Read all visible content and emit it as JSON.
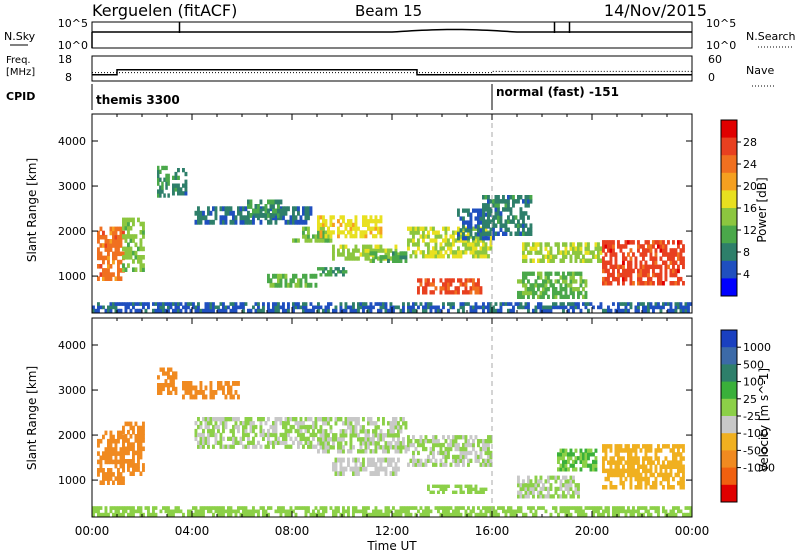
{
  "header": {
    "station": "Kerguelen (fitACF)",
    "beam": "Beam 15",
    "date": "14/Nov/2015"
  },
  "top_panels": {
    "nsky": {
      "label": "N.Sky",
      "left_ticks": [
        "10^5",
        "10^0"
      ],
      "right_ticks": [
        "10^5",
        "10^0"
      ],
      "right_label": "N.Search",
      "spike_times": [
        3.5,
        18.5,
        19.1
      ]
    },
    "freq": {
      "label_line1": "Freq.",
      "label_line2": "[MHz]",
      "left_ticks": [
        "18",
        "8"
      ],
      "right_ticks": [
        "60",
        "0"
      ],
      "right_label": "Nave",
      "freq_steps": [
        {
          "t0": 0.0,
          "t1": 1.0,
          "mhz": 10.5
        },
        {
          "t0": 1.0,
          "t1": 13.0,
          "mhz": 12.5
        },
        {
          "t0": 13.0,
          "t1": 24.0,
          "mhz": 10.5
        }
      ],
      "nave_steps": [
        {
          "t0": 0.0,
          "t1": 16.0,
          "nave": 20
        },
        {
          "t0": 16.0,
          "t1": 24.0,
          "nave": 23
        }
      ]
    },
    "cpid": {
      "label": "CPID",
      "entries": [
        {
          "t": 0.0,
          "text": "themis 3300"
        },
        {
          "t": 16.0,
          "text": "normal (fast) -151"
        }
      ]
    }
  },
  "chart_data": [
    {
      "type": "heatmap",
      "title": "",
      "quantity": "Power",
      "xlabel": "Time UT",
      "ylabel": "Slant Range [km]",
      "x_ticks": [
        "00:00",
        "04:00",
        "08:00",
        "12:00",
        "16:00",
        "20:00",
        "00:00"
      ],
      "xlim": [
        0,
        24
      ],
      "y_ticks": [
        1000,
        2000,
        3000,
        4000
      ],
      "ylim": [
        180,
        4600
      ],
      "colorbar": {
        "label": "Power [dB]",
        "ticks": [
          4,
          8,
          12,
          16,
          20,
          24,
          28
        ],
        "colors": [
          "#0000ff",
          "#1f4fbf",
          "#2e7f6a",
          "#4aa84a",
          "#8cc63f",
          "#e8e020",
          "#f5a020",
          "#f07020",
          "#e84020",
          "#e00000"
        ],
        "range": [
          0,
          32
        ]
      },
      "regions": [
        {
          "t0": 0.2,
          "t1": 1.3,
          "r0": 900,
          "r1": 2100,
          "v": 24
        },
        {
          "t0": 1.2,
          "t1": 2.1,
          "r0": 1100,
          "r1": 2300,
          "v": 14
        },
        {
          "t0": 2.6,
          "t1": 3.1,
          "r0": 2750,
          "r1": 3450,
          "v": 10
        },
        {
          "t0": 3.2,
          "t1": 3.8,
          "r0": 2800,
          "r1": 3400,
          "v": 8
        },
        {
          "t0": 4.1,
          "t1": 8.8,
          "r0": 2150,
          "r1": 2550,
          "v": 7
        },
        {
          "t0": 6.2,
          "t1": 7.6,
          "r0": 2300,
          "r1": 2700,
          "v": 9
        },
        {
          "t0": 8.0,
          "t1": 9.6,
          "r0": 1750,
          "r1": 2100,
          "v": 13
        },
        {
          "t0": 9.0,
          "t1": 11.6,
          "r0": 1850,
          "r1": 2350,
          "v": 18
        },
        {
          "t0": 9.6,
          "t1": 12.3,
          "r0": 1350,
          "r1": 1700,
          "v": 15
        },
        {
          "t0": 7.0,
          "t1": 9.0,
          "r0": 750,
          "r1": 1050,
          "v": 12
        },
        {
          "t0": 9.0,
          "t1": 10.2,
          "r0": 1000,
          "r1": 1200,
          "v": 10
        },
        {
          "t0": 11.1,
          "t1": 12.6,
          "r0": 1300,
          "r1": 1550,
          "v": 11
        },
        {
          "t0": 12.6,
          "t1": 16.0,
          "r0": 1400,
          "r1": 2100,
          "v": 16
        },
        {
          "t0": 13.0,
          "t1": 15.6,
          "r0": 600,
          "r1": 950,
          "v": 26
        },
        {
          "t0": 14.6,
          "t1": 16.1,
          "r0": 1800,
          "r1": 2500,
          "v": 6
        },
        {
          "t0": 15.6,
          "t1": 17.6,
          "r0": 1900,
          "r1": 2800,
          "v": 8
        },
        {
          "t0": 17.0,
          "t1": 19.8,
          "r0": 500,
          "r1": 1100,
          "v": 12
        },
        {
          "t0": 17.2,
          "t1": 20.4,
          "r0": 1300,
          "r1": 1750,
          "v": 15
        },
        {
          "t0": 20.4,
          "t1": 23.7,
          "r0": 800,
          "r1": 1800,
          "v": 27
        },
        {
          "t0": 0.0,
          "t1": 24.0,
          "r0": 200,
          "r1": 420,
          "v": 6
        }
      ],
      "markers": {
        "dashed_time": 16.0
      }
    },
    {
      "type": "heatmap",
      "title": "",
      "quantity": "Velocity",
      "xlabel": "Time UT",
      "ylabel": "Slant Range [km]",
      "x_ticks": [
        "00:00",
        "04:00",
        "08:00",
        "12:00",
        "16:00",
        "20:00",
        "00:00"
      ],
      "xlim": [
        0,
        24
      ],
      "y_ticks": [
        1000,
        2000,
        3000,
        4000
      ],
      "ylim": [
        180,
        4600
      ],
      "colorbar": {
        "label": "Velocity [m s^-1]",
        "ticks": [
          "1000",
          "500",
          "100",
          "25",
          "-25",
          "-100",
          "-500",
          "-1000"
        ],
        "colors": [
          "#1a40c0",
          "#3c6aa8",
          "#2e7f6a",
          "#3ab03a",
          "#8cd048",
          "#c8c8c8",
          "#f0b020",
          "#f08a20",
          "#f06010",
          "#e00000"
        ],
        "range": [
          -1000,
          1000
        ]
      },
      "regions": [
        {
          "t0": 0.2,
          "t1": 1.3,
          "r0": 900,
          "r1": 2100,
          "v": -500
        },
        {
          "t0": 1.2,
          "t1": 2.1,
          "r0": 1100,
          "r1": 2300,
          "v": -500
        },
        {
          "t0": 2.6,
          "t1": 3.4,
          "r0": 2900,
          "r1": 3500,
          "v": -500
        },
        {
          "t0": 3.6,
          "t1": 5.9,
          "r0": 2800,
          "r1": 3200,
          "v": -500
        },
        {
          "t0": 4.1,
          "t1": 9.0,
          "r0": 1700,
          "r1": 2400,
          "v": 0
        },
        {
          "t0": 9.0,
          "t1": 12.6,
          "r0": 1600,
          "r1": 2400,
          "v": 0
        },
        {
          "t0": 9.6,
          "t1": 12.3,
          "r0": 1100,
          "r1": 1500,
          "v": -50
        },
        {
          "t0": 12.6,
          "t1": 16.0,
          "r0": 1300,
          "r1": 2000,
          "v": 0
        },
        {
          "t0": 13.4,
          "t1": 15.8,
          "r0": 700,
          "r1": 900,
          "v": 60
        },
        {
          "t0": 17.0,
          "t1": 19.5,
          "r0": 600,
          "r1": 1100,
          "v": 0
        },
        {
          "t0": 18.6,
          "t1": 20.2,
          "r0": 1200,
          "r1": 1700,
          "v": 200
        },
        {
          "t0": 20.4,
          "t1": 23.7,
          "r0": 800,
          "r1": 1800,
          "v": -300
        },
        {
          "t0": 0.0,
          "t1": 24.0,
          "r0": 200,
          "r1": 420,
          "v": 60
        }
      ],
      "markers": {
        "dashed_time": 16.0
      }
    }
  ]
}
